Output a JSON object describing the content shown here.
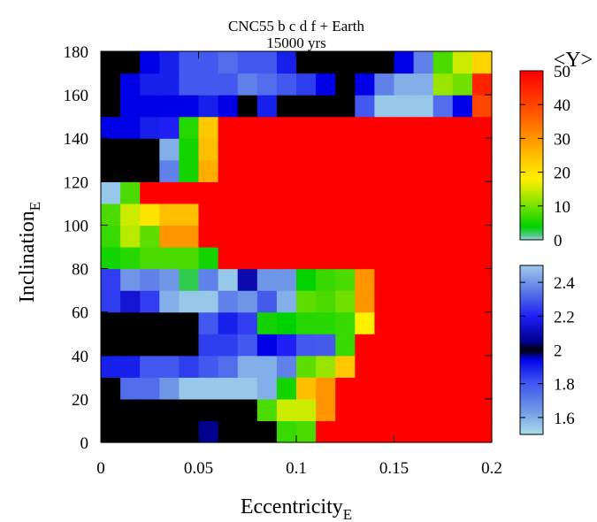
{
  "chart_data": {
    "type": "heatmap",
    "title": "CNC55 b c d f + Earth",
    "subtitle": "15000 yrs",
    "xlabel": "Eccentricity",
    "xlabel_sub": "E",
    "ylabel": "Inclination",
    "ylabel_sub": "E",
    "xlim": [
      0,
      0.2
    ],
    "ylim": [
      0,
      180
    ],
    "x_ticks": [
      "0",
      "0.05",
      "0.1",
      "0.15",
      "0.2"
    ],
    "x_tick_values": [
      0,
      0.05,
      0.1,
      0.15,
      0.2
    ],
    "y_ticks": [
      "0",
      "20",
      "40",
      "60",
      "80",
      "100",
      "120",
      "140",
      "160",
      "180"
    ],
    "y_tick_values": [
      0,
      20,
      40,
      60,
      80,
      100,
      120,
      140,
      160,
      180
    ],
    "grid": false,
    "x_cells": 20,
    "y_cells": 18,
    "colorbar_top": {
      "label": "<Y>",
      "range": [
        0,
        50
      ],
      "ticks": [
        "0",
        "10",
        "20",
        "30",
        "40",
        "50"
      ],
      "tick_values": [
        0,
        10,
        20,
        30,
        40,
        50
      ]
    },
    "colorbar_bottom": {
      "range": [
        1.5,
        2.5
      ],
      "ticks": [
        "1.6",
        "1.8",
        "2",
        "2.2",
        "2.4"
      ],
      "tick_values": [
        1.6,
        1.8,
        2.0,
        2.2,
        2.4
      ]
    },
    "value_note": "rows listed from inclination 0 (bottom) to 180 (top); each row covers eccentricity 0 to 0.2 in 20 cells; values >= 2.5 read on <Y> scale, values < 2.5 on lower scale",
    "values": [
      [
        2.0,
        2.0,
        2.0,
        2.0,
        2.0,
        2.05,
        2.0,
        2.0,
        2.0,
        7,
        8,
        50,
        50,
        50,
        50,
        50,
        50,
        50,
        50,
        50
      ],
      [
        2.0,
        2.0,
        2.0,
        2.0,
        2.0,
        2.0,
        2.0,
        2.0,
        8,
        15,
        15,
        30,
        50,
        50,
        50,
        50,
        50,
        50,
        50,
        50
      ],
      [
        2.0,
        1.75,
        1.75,
        1.65,
        1.55,
        1.55,
        1.55,
        1.55,
        1.6,
        5,
        25,
        30,
        50,
        50,
        50,
        50,
        50,
        50,
        50,
        50
      ],
      [
        1.9,
        1.9,
        1.8,
        1.8,
        1.85,
        1.8,
        1.75,
        1.6,
        1.6,
        1.7,
        9,
        12,
        24,
        50,
        50,
        50,
        50,
        50,
        50,
        50
      ],
      [
        2.0,
        2.0,
        2.0,
        2.0,
        2.0,
        1.85,
        1.85,
        1.8,
        1.95,
        2.2,
        1.8,
        2.3,
        7,
        50,
        50,
        50,
        50,
        50,
        50,
        50
      ],
      [
        2.0,
        2.0,
        2.0,
        2.0,
        2.0,
        1.8,
        1.9,
        2.25,
        5,
        4,
        6,
        6,
        7,
        18,
        50,
        50,
        50,
        50,
        50,
        50
      ],
      [
        1.85,
        2.15,
        2.25,
        1.6,
        1.55,
        1.55,
        1.7,
        1.65,
        2.3,
        1.6,
        9,
        8,
        10,
        30,
        50,
        50,
        50,
        50,
        50,
        50
      ],
      [
        2.25,
        2.4,
        1.7,
        1.65,
        2.5,
        1.7,
        1.55,
        2.1,
        1.65,
        1.65,
        4,
        7,
        8,
        30,
        50,
        50,
        50,
        50,
        50,
        50
      ],
      [
        5,
        6,
        8,
        8,
        8,
        5,
        50,
        50,
        50,
        50,
        50,
        50,
        50,
        50,
        50,
        50,
        50,
        50,
        50,
        50
      ],
      [
        7,
        14,
        9,
        30,
        30,
        50,
        50,
        50,
        50,
        50,
        50,
        50,
        50,
        50,
        50,
        50,
        50,
        50,
        50,
        50
      ],
      [
        8,
        15,
        20,
        25,
        25,
        50,
        50,
        50,
        50,
        50,
        50,
        50,
        50,
        50,
        50,
        50,
        50,
        50,
        50,
        50
      ],
      [
        1.55,
        8,
        50,
        50,
        50,
        50,
        50,
        50,
        50,
        50,
        50,
        50,
        50,
        50,
        50,
        50,
        50,
        50,
        50,
        50
      ],
      [
        2.0,
        2.0,
        2.0,
        1.7,
        5,
        27,
        50,
        50,
        50,
        50,
        50,
        50,
        50,
        50,
        50,
        50,
        50,
        50,
        50,
        50
      ],
      [
        2.0,
        2.0,
        2.0,
        1.6,
        5,
        25,
        50,
        50,
        50,
        50,
        50,
        50,
        50,
        50,
        50,
        50,
        50,
        50,
        50,
        50
      ],
      [
        1.95,
        1.95,
        1.9,
        2.2,
        6,
        24,
        50,
        50,
        50,
        50,
        50,
        50,
        50,
        50,
        50,
        50,
        50,
        50,
        50,
        50
      ],
      [
        2.0,
        1.95,
        1.95,
        1.95,
        1.95,
        1.9,
        1.95,
        2.0,
        1.9,
        2.0,
        2.0,
        2.0,
        2.0,
        1.8,
        1.55,
        1.55,
        1.55,
        1.75,
        1.95,
        40
      ],
      [
        2.0,
        1.95,
        1.9,
        1.9,
        1.8,
        1.8,
        1.8,
        1.7,
        1.75,
        1.8,
        1.85,
        1.95,
        2.0,
        1.95,
        1.7,
        1.6,
        1.6,
        12,
        10,
        45
      ],
      [
        2.0,
        2.0,
        1.95,
        1.9,
        1.8,
        1.8,
        1.75,
        1.8,
        1.8,
        1.9,
        2.0,
        2.0,
        2.0,
        2.0,
        2.0,
        1.95,
        1.7,
        8,
        15,
        22
      ]
    ]
  }
}
